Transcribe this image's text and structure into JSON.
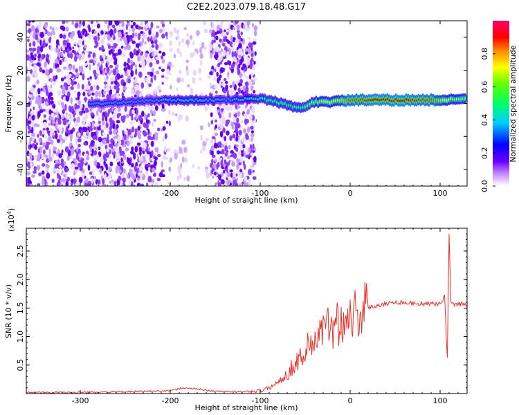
{
  "title": "C2E2.2023.079.18.48.G17",
  "chart_data": [
    {
      "type": "heatmap",
      "xlabel": "Height of straight line (km)",
      "ylabel": "Frequency (Hz)",
      "xlim": [
        -360,
        130
      ],
      "ylim": [
        -50,
        50
      ],
      "xticks": [
        -300,
        -200,
        -100,
        0,
        100
      ],
      "yticks": [
        -40,
        -20,
        0,
        20,
        40
      ],
      "colorbar": {
        "label": "Normalized spectral amplitude",
        "range": [
          0,
          1
        ],
        "ticks": [
          0.0,
          0.2,
          0.4,
          0.6,
          0.8
        ],
        "tick_labels": [
          "0.0",
          "0.2",
          "0.4",
          "0.6",
          "0.8"
        ]
      },
      "noise_regions": [
        {
          "x": [
            -360,
            -215
          ],
          "y": [
            -50,
            50
          ],
          "density": "high"
        },
        {
          "x": [
            -215,
            -200
          ],
          "y": [
            -50,
            50
          ],
          "density": "low"
        },
        {
          "x": [
            -155,
            -105
          ],
          "y": [
            -50,
            50
          ],
          "density": "high"
        },
        {
          "x": [
            -200,
            -155
          ],
          "y": [
            -50,
            50
          ],
          "density": "sparse"
        }
      ],
      "signal_band": [
        {
          "x": -290,
          "f": 0,
          "amp": 0.35
        },
        {
          "x": -270,
          "f": 0,
          "amp": 0.35
        },
        {
          "x": -215,
          "f": 2,
          "amp": 0.35
        },
        {
          "x": -200,
          "f": 2,
          "amp": 0.4
        },
        {
          "x": -180,
          "f": 2,
          "amp": 0.45
        },
        {
          "x": -160,
          "f": 2,
          "amp": 0.4
        },
        {
          "x": -140,
          "f": 2,
          "amp": 0.35
        },
        {
          "x": -105,
          "f": 3,
          "amp": 0.45
        },
        {
          "x": -90,
          "f": 2,
          "amp": 0.55
        },
        {
          "x": -70,
          "f": -1,
          "amp": 0.55
        },
        {
          "x": -55,
          "f": -3,
          "amp": 0.55
        },
        {
          "x": -40,
          "f": 1,
          "amp": 0.65
        },
        {
          "x": -20,
          "f": 1,
          "amp": 0.7
        },
        {
          "x": 0,
          "f": 2,
          "amp": 0.85
        },
        {
          "x": 30,
          "f": 2,
          "amp": 0.9
        },
        {
          "x": 60,
          "f": 2,
          "amp": 0.9
        },
        {
          "x": 90,
          "f": 2,
          "amp": 0.85
        },
        {
          "x": 110,
          "f": 2,
          "amp": 0.7
        },
        {
          "x": 130,
          "f": 3,
          "amp": 0.6
        }
      ]
    },
    {
      "type": "line",
      "xlabel": "Height of straight line (km)",
      "ylabel": "SNR (10 * v/v)",
      "multiplier_label": "(x10",
      "multiplier_exp": "4",
      "multiplier_close": ")",
      "xlim": [
        -360,
        130
      ],
      "ylim": [
        0,
        2.9
      ],
      "xticks": [
        -300,
        -200,
        -100,
        0,
        100
      ],
      "yticks": [
        0.5,
        1.0,
        1.5,
        2.0,
        2.5
      ],
      "ytick_labels": [
        "0.5",
        "1.0",
        "1.5",
        "2.0",
        "2.5"
      ],
      "series": [
        {
          "color": "#e8302a",
          "x": [
            -360,
            -300,
            -250,
            -200,
            -185,
            -170,
            -150,
            -120,
            -100,
            -90,
            -80,
            -70,
            -60,
            -50,
            -40,
            -30,
            -20,
            -10,
            0,
            10,
            20,
            30,
            40,
            50,
            60,
            70,
            80,
            90,
            100,
            105,
            108,
            110,
            112,
            115,
            120,
            130
          ],
          "y": [
            0.02,
            0.02,
            0.03,
            0.05,
            0.1,
            0.08,
            0.04,
            0.03,
            0.05,
            0.1,
            0.2,
            0.35,
            0.55,
            0.75,
            0.95,
            1.1,
            1.2,
            1.3,
            1.38,
            1.45,
            1.5,
            1.55,
            1.58,
            1.6,
            1.6,
            1.58,
            1.58,
            1.57,
            1.58,
            1.7,
            0.6,
            2.8,
            1.6,
            1.55,
            1.58,
            1.55
          ]
        }
      ]
    }
  ]
}
